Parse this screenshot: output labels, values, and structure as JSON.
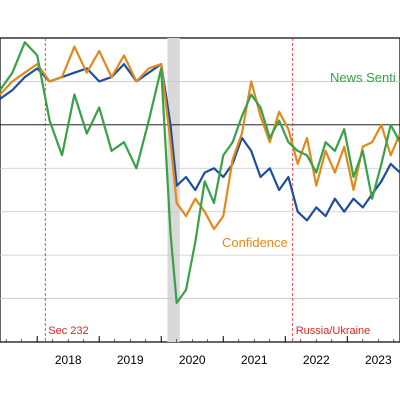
{
  "chart_data": {
    "type": "line",
    "title": "",
    "xlabel": "",
    "ylabel": "",
    "x_tick_labels": [
      "2018",
      "2019",
      "2020",
      "2021",
      "2022",
      "2023"
    ],
    "x_range": [
      2017.4,
      2023.85
    ],
    "y_range": [
      0,
      7
    ],
    "grid": {
      "horizontal": true,
      "vertical": false
    },
    "reference_line_y": 5,
    "shaded_periods": [
      {
        "start": 2020.1,
        "end": 2020.3
      }
    ],
    "event_lines": [
      {
        "x": 2018.13,
        "label": "Sec 232"
      },
      {
        "x": 2022.12,
        "label": "Russia/Ukraine"
      }
    ],
    "annotations": [
      {
        "text": "News Senti",
        "series": "News Sentiment"
      },
      {
        "text": "Confidence",
        "series": "Confidence"
      }
    ],
    "colors": {
      "blue": "#1f4e9c",
      "orange": "#e08a1e",
      "green": "#3aa048",
      "event_line": "#d62728",
      "shade": "#d9d9d9",
      "grid": "#c8c8c8"
    },
    "series": [
      {
        "color": "#1f4e9c",
        "x": [
          2017.4,
          2017.6,
          2017.8,
          2018.0,
          2018.2,
          2018.4,
          2018.6,
          2018.8,
          2019.0,
          2019.2,
          2019.4,
          2019.6,
          2019.8,
          2020.0,
          2020.15,
          2020.25,
          2020.4,
          2020.55,
          2020.7,
          2020.85,
          2021.0,
          2021.15,
          2021.3,
          2021.45,
          2021.6,
          2021.75,
          2021.9,
          2022.05,
          2022.2,
          2022.35,
          2022.5,
          2022.65,
          2022.8,
          2022.95,
          2023.1,
          2023.25,
          2023.4,
          2023.55,
          2023.7,
          2023.85
        ],
        "values": [
          5.6,
          5.8,
          6.1,
          6.3,
          6.0,
          6.1,
          6.2,
          6.3,
          6.0,
          6.1,
          6.4,
          6.0,
          6.2,
          6.4,
          5.0,
          3.6,
          3.8,
          3.5,
          3.9,
          4.0,
          3.8,
          4.1,
          4.7,
          4.4,
          3.8,
          4.0,
          3.5,
          3.8,
          3.0,
          2.8,
          3.1,
          2.9,
          3.3,
          3.0,
          3.3,
          3.1,
          3.4,
          3.7,
          4.1,
          3.9
        ]
      },
      {
        "color": "#e08a1e",
        "x": [
          2017.4,
          2017.6,
          2017.8,
          2018.0,
          2018.2,
          2018.4,
          2018.6,
          2018.8,
          2019.0,
          2019.2,
          2019.4,
          2019.6,
          2019.8,
          2020.0,
          2020.15,
          2020.25,
          2020.4,
          2020.55,
          2020.7,
          2020.85,
          2021.0,
          2021.15,
          2021.3,
          2021.45,
          2021.6,
          2021.75,
          2021.9,
          2022.05,
          2022.2,
          2022.35,
          2022.5,
          2022.65,
          2022.8,
          2022.95,
          2023.1,
          2023.25,
          2023.4,
          2023.55,
          2023.7,
          2023.85
        ],
        "values": [
          5.7,
          6.0,
          6.2,
          6.4,
          6.0,
          6.1,
          6.8,
          6.2,
          6.7,
          6.1,
          6.6,
          6.0,
          6.3,
          6.4,
          4.6,
          3.2,
          2.9,
          3.3,
          3.0,
          2.6,
          2.9,
          4.2,
          4.8,
          6.0,
          5.2,
          4.6,
          5.3,
          4.9,
          4.1,
          4.7,
          3.6,
          4.4,
          3.9,
          4.5,
          3.5,
          4.5,
          4.6,
          5.0,
          4.3,
          4.8
        ]
      },
      {
        "color": "#3aa048",
        "x": [
          2017.4,
          2017.6,
          2017.8,
          2018.0,
          2018.2,
          2018.4,
          2018.6,
          2018.8,
          2019.0,
          2019.2,
          2019.4,
          2019.6,
          2019.8,
          2020.0,
          2020.15,
          2020.25,
          2020.4,
          2020.55,
          2020.7,
          2020.85,
          2021.0,
          2021.15,
          2021.3,
          2021.45,
          2021.6,
          2021.75,
          2021.9,
          2022.05,
          2022.2,
          2022.35,
          2022.5,
          2022.65,
          2022.8,
          2022.95,
          2023.1,
          2023.25,
          2023.4,
          2023.55,
          2023.7,
          2023.85
        ],
        "values": [
          5.8,
          6.2,
          6.9,
          6.6,
          5.1,
          4.3,
          5.7,
          4.8,
          5.4,
          4.4,
          4.6,
          4.0,
          5.1,
          6.3,
          2.5,
          0.9,
          1.2,
          2.3,
          3.7,
          3.2,
          4.3,
          4.6,
          5.2,
          5.7,
          5.4,
          4.7,
          5.1,
          4.6,
          4.4,
          4.3,
          3.9,
          4.6,
          4.4,
          4.9,
          3.8,
          4.4,
          3.3,
          4.1,
          5.0,
          4.6
        ]
      }
    ]
  }
}
